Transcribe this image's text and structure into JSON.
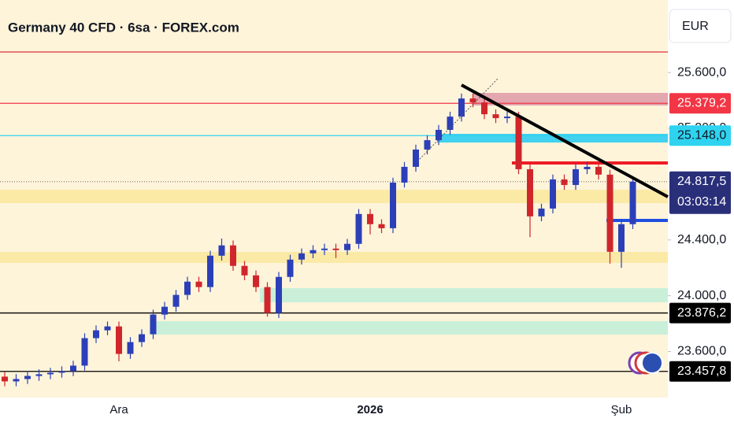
{
  "chart_data": {
    "type": "candlestick",
    "title": "Germany 40 CFD · 6sa · FOREX.com",
    "currency": "EUR",
    "countdown": "03:03:14",
    "categories": [
      null,
      null,
      null,
      null,
      null,
      null,
      null,
      null,
      null,
      null,
      "Ara",
      null,
      null,
      null,
      null,
      null,
      null,
      null,
      null,
      null,
      null,
      null,
      null,
      null,
      null,
      null,
      null,
      null,
      null,
      null,
      null,
      null,
      "2026",
      null,
      null,
      null,
      null,
      null,
      null,
      null,
      null,
      null,
      null,
      null,
      null,
      null,
      null,
      null,
      null,
      null,
      null,
      null,
      null,
      null,
      "Şub",
      null
    ],
    "open": [
      23420,
      23386,
      23403,
      23425,
      23437,
      23448,
      23459,
      23499,
      23696,
      23752,
      23780,
      23583,
      23668,
      23724,
      23865,
      23921,
      24006,
      24101,
      24062,
      24287,
      24361,
      24214,
      24146,
      24062,
      23876,
      24135,
      24259,
      24304,
      24327,
      24338,
      24327,
      24372,
      24586,
      24513,
      24484,
      24811,
      24924,
      25048,
      25115,
      25189,
      25284,
      25414,
      25386,
      25301,
      25273,
      25284,
      24907,
      24569,
      24625,
      24834,
      24794,
      24907,
      24924,
      24868,
      24315,
      24513
    ],
    "high": [
      23455,
      23438,
      23460,
      23472,
      23483,
      23494,
      23534,
      23731,
      23787,
      23815,
      23815,
      23703,
      23759,
      23900,
      23956,
      24041,
      24136,
      24136,
      24322,
      24410,
      24396,
      24249,
      24181,
      24097,
      24170,
      24294,
      24339,
      24362,
      24373,
      24373,
      24407,
      24621,
      24621,
      24548,
      24846,
      24959,
      25083,
      25150,
      25224,
      25319,
      25449,
      25449,
      25421,
      25336,
      25319,
      25319,
      24942,
      24660,
      24869,
      24869,
      24942,
      24959,
      24959,
      24903,
      24548,
      24852
    ],
    "low": [
      23351,
      23351,
      23368,
      23390,
      23402,
      23413,
      23424,
      23464,
      23661,
      23717,
      23530,
      23548,
      23633,
      23689,
      23830,
      23886,
      23971,
      24027,
      24027,
      24252,
      24179,
      24111,
      24027,
      23850,
      23841,
      24100,
      24224,
      24269,
      24292,
      24270,
      24292,
      24337,
      24440,
      24449,
      24449,
      24776,
      24889,
      25013,
      25080,
      25154,
      25249,
      25351,
      25266,
      25238,
      25238,
      24872,
      24420,
      24534,
      24590,
      24759,
      24759,
      24872,
      24833,
      24230,
      24200,
      24478
    ],
    "close": [
      23386,
      23403,
      23425,
      23437,
      23448,
      23459,
      23499,
      23696,
      23752,
      23780,
      23583,
      23668,
      23724,
      23865,
      23921,
      24006,
      24101,
      24062,
      24287,
      24361,
      24214,
      24146,
      24062,
      23876,
      24135,
      24259,
      24304,
      24327,
      24338,
      24327,
      24372,
      24586,
      24513,
      24484,
      24811,
      24924,
      25048,
      25115,
      25189,
      25284,
      25414,
      25386,
      25301,
      25273,
      25284,
      24907,
      24569,
      24625,
      24834,
      24794,
      24907,
      24924,
      24868,
      24315,
      24513,
      24817.5
    ],
    "up_color": "#2c3fb8",
    "down_color": "#d0262b",
    "ylim": [
      23270,
      26120
    ],
    "yticks": [
      {
        "value": 25600,
        "label": "25.600,0"
      },
      {
        "value": 25200,
        "label": "25.200,0"
      },
      {
        "value": 24400,
        "label": "24.400,0"
      },
      {
        "value": 24000,
        "label": "24.000,0"
      },
      {
        "value": 23600,
        "label": "23.600,0"
      }
    ],
    "price_labels": [
      {
        "value": 25379.2,
        "label": "25.379,2",
        "color": "#f23645"
      },
      {
        "value": 25148.0,
        "label": "25.148,0",
        "color": "#2ed3f0"
      },
      {
        "value": 24817.5,
        "label": "24.817,5",
        "color": "#2a2f7a"
      },
      {
        "value": 23876.2,
        "label": "23.876,2",
        "color": "#000000"
      },
      {
        "value": 23457.8,
        "label": "23.457,8",
        "color": "#000000"
      }
    ]
  }
}
